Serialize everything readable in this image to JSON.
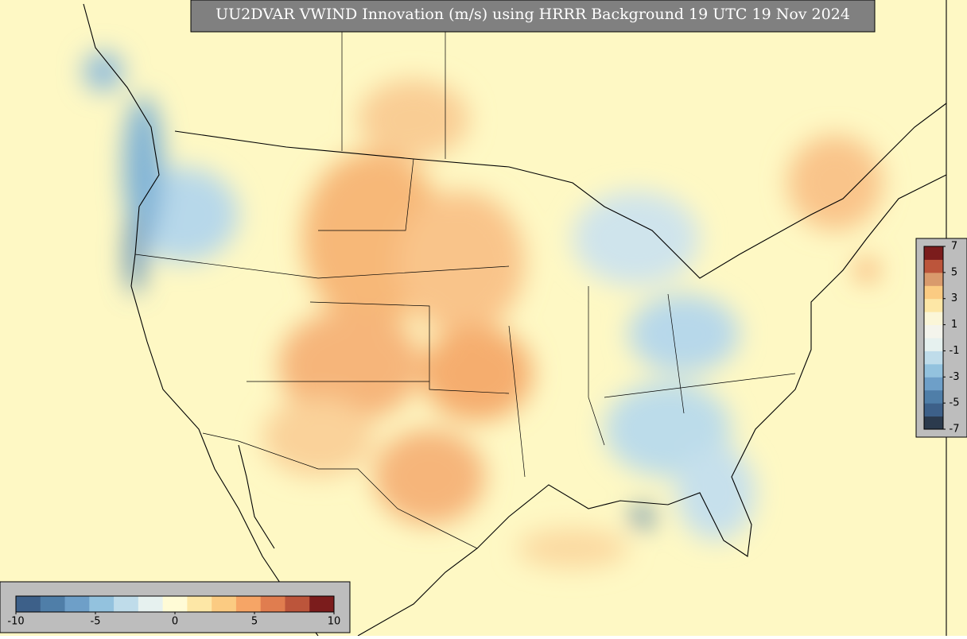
{
  "title": "UU2DVAR VWIND Innovation (m/s) using HRRR Background 19 UTC 19 Nov 2024",
  "bottom_colorbar": {
    "lim": [
      -10,
      10
    ],
    "ticks": [
      -10,
      -5,
      0,
      5,
      10
    ],
    "colors": [
      "#3d6089",
      "#4f7ea8",
      "#6e9fc8",
      "#93c2de",
      "#bfdcea",
      "#e6f1ef",
      "#fffbd6",
      "#fde7a6",
      "#fbcb82",
      "#f6a566",
      "#e07d4f",
      "#bc553b",
      "#7b1c1c"
    ]
  },
  "right_colorbar": {
    "lim": [
      -7,
      7
    ],
    "ticks": [
      7,
      5,
      3,
      1,
      -1,
      -3,
      -5,
      -7
    ],
    "colors": [
      "#2b3a4d",
      "#3d6089",
      "#4f7ea8",
      "#6e9fc8",
      "#93c2de",
      "#bfdcea",
      "#e6f1ef",
      "#f4f4ec",
      "#fbf6d8",
      "#fde7a6",
      "#fbcb82",
      "#d99a6c",
      "#bc553b",
      "#7b1c1c"
    ]
  }
}
